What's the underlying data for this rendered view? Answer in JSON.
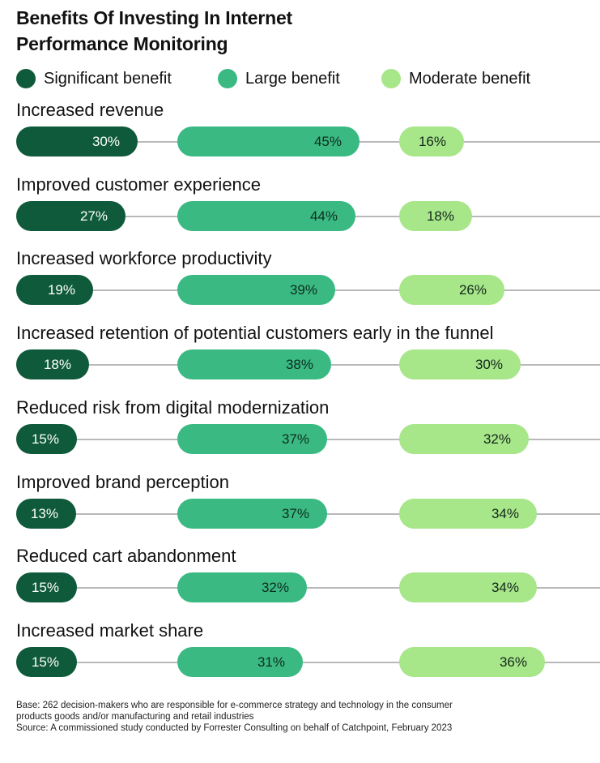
{
  "chart_data": {
    "type": "bar",
    "title_lines": [
      "Benefits Of Investing In Internet",
      "Performance Monitoring"
    ],
    "legend": [
      {
        "name": "Significant benefit",
        "color": "#0f5a3b"
      },
      {
        "name": "Large benefit",
        "color": "#3aba82"
      },
      {
        "name": "Moderate benefit",
        "color": "#a8e68a"
      }
    ],
    "categories": [
      "Increased revenue",
      "Improved customer experience",
      "Increased workforce productivity",
      "Increased retention of potential customers early in the funnel",
      "Reduced risk from digital modernization",
      "Improved brand perception",
      "Reduced cart abandonment",
      "Increased market share"
    ],
    "series": [
      {
        "name": "Significant benefit",
        "values": [
          30,
          27,
          19,
          18,
          15,
          13,
          15,
          15
        ],
        "labels": [
          "30%",
          "27%",
          "19%",
          "18%",
          "15%",
          "13%",
          "15%",
          "15%"
        ]
      },
      {
        "name": "Large benefit",
        "values": [
          45,
          44,
          39,
          38,
          37,
          37,
          32,
          31
        ],
        "labels": [
          "45%",
          "44%",
          "39%",
          "38%",
          "37%",
          "37%",
          "32%",
          "31%"
        ]
      },
      {
        "name": "Moderate benefit",
        "values": [
          16,
          18,
          26,
          30,
          32,
          34,
          34,
          36
        ],
        "labels": [
          "16%",
          "18%",
          "26%",
          "30%",
          "32%",
          "34%",
          "34%",
          "36%"
        ]
      }
    ],
    "unit": "%"
  },
  "footnote": {
    "base_line1": "Base: 262 decision-makers who are responsible for e-commerce strategy and technology in the consumer",
    "base_line2": "products goods and/or manufacturing and retail industries",
    "source": "Source: A commissioned study conducted by Forrester Consulting on behalf of Catchpoint, February 2023"
  }
}
